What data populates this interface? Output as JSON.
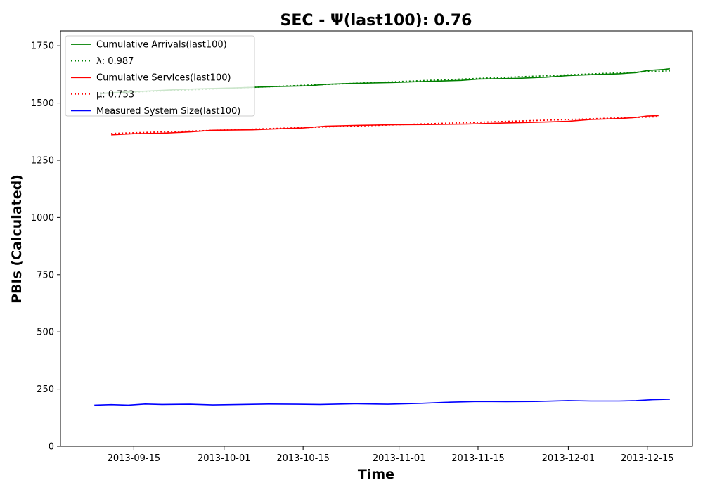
{
  "chart_data": {
    "type": "line",
    "title": "SEC -  Ψ(last100): 0.76",
    "xlabel": "Time",
    "ylabel": "PBIs (Calculated)",
    "x_range": [
      "2013-09-02",
      "2013-12-23"
    ],
    "ylim": [
      0,
      1815
    ],
    "x_ticks": [
      "2013-09-15",
      "2013-10-01",
      "2013-10-15",
      "2013-11-01",
      "2013-11-15",
      "2013-12-01",
      "2013-12-15"
    ],
    "y_ticks": [
      0,
      250,
      500,
      750,
      1000,
      1250,
      1500,
      1750
    ],
    "grid": false,
    "legend_position": "top-left",
    "colors": {
      "arrivals": "#008000",
      "services": "#ff0000",
      "system_size": "#0000ff"
    },
    "series": [
      {
        "key": "arrivals",
        "name": "Cumulative Arrivals(last100)",
        "style": "solid",
        "color": "#008000",
        "points": [
          [
            "2013-09-09",
            1541
          ],
          [
            "2013-09-12",
            1546
          ],
          [
            "2013-09-18",
            1553
          ],
          [
            "2013-09-24",
            1560
          ],
          [
            "2013-09-28",
            1563
          ],
          [
            "2013-10-03",
            1566
          ],
          [
            "2013-10-10",
            1572
          ],
          [
            "2013-10-16",
            1575
          ],
          [
            "2013-10-19",
            1582
          ],
          [
            "2013-10-24",
            1586
          ],
          [
            "2013-10-31",
            1590
          ],
          [
            "2013-11-05",
            1594
          ],
          [
            "2013-11-12",
            1599
          ],
          [
            "2013-11-15",
            1605
          ],
          [
            "2013-11-22",
            1608
          ],
          [
            "2013-11-27",
            1613
          ],
          [
            "2013-12-01",
            1620
          ],
          [
            "2013-12-05",
            1624
          ],
          [
            "2013-12-10",
            1628
          ],
          [
            "2013-12-13",
            1633
          ],
          [
            "2013-12-15",
            1642
          ],
          [
            "2013-12-18",
            1647
          ],
          [
            "2013-12-19",
            1650
          ]
        ]
      },
      {
        "key": "lambda",
        "name": "λ: 0.987",
        "style": "dotted",
        "color": "#008000",
        "points": [
          [
            "2013-09-09",
            1542
          ],
          [
            "2013-12-19",
            1641
          ]
        ]
      },
      {
        "key": "services",
        "name": "Cumulative Services(last100)",
        "style": "solid",
        "color": "#ff0000",
        "points": [
          [
            "2013-09-11",
            1361
          ],
          [
            "2013-09-15",
            1366
          ],
          [
            "2013-09-20",
            1368
          ],
          [
            "2013-09-25",
            1374
          ],
          [
            "2013-09-29",
            1381
          ],
          [
            "2013-10-06",
            1383
          ],
          [
            "2013-10-10",
            1387
          ],
          [
            "2013-10-15",
            1391
          ],
          [
            "2013-10-19",
            1399
          ],
          [
            "2013-10-24",
            1402
          ],
          [
            "2013-10-31",
            1405
          ],
          [
            "2013-11-06",
            1406
          ],
          [
            "2013-11-13",
            1408
          ],
          [
            "2013-11-20",
            1413
          ],
          [
            "2013-11-27",
            1417
          ],
          [
            "2013-12-01",
            1420
          ],
          [
            "2013-12-05",
            1428
          ],
          [
            "2013-12-10",
            1432
          ],
          [
            "2013-12-13",
            1437
          ],
          [
            "2013-12-15",
            1443
          ],
          [
            "2013-12-17",
            1445
          ]
        ]
      },
      {
        "key": "mu",
        "name": "μ: 0.753",
        "style": "dotted",
        "color": "#ff0000",
        "points": [
          [
            "2013-09-11",
            1367
          ],
          [
            "2013-12-17",
            1440
          ]
        ]
      },
      {
        "key": "system_size",
        "name": "Measured System Size(last100)",
        "style": "solid",
        "color": "#0000ff",
        "points": [
          [
            "2013-09-08",
            180
          ],
          [
            "2013-09-11",
            182
          ],
          [
            "2013-09-14",
            180
          ],
          [
            "2013-09-17",
            185
          ],
          [
            "2013-09-20",
            183
          ],
          [
            "2013-09-25",
            184
          ],
          [
            "2013-09-29",
            181
          ],
          [
            "2013-10-04",
            183
          ],
          [
            "2013-10-09",
            185
          ],
          [
            "2013-10-14",
            184
          ],
          [
            "2013-10-18",
            183
          ],
          [
            "2013-10-24",
            186
          ],
          [
            "2013-10-30",
            184
          ],
          [
            "2013-11-05",
            188
          ],
          [
            "2013-11-10",
            193
          ],
          [
            "2013-11-15",
            196
          ],
          [
            "2013-11-20",
            195
          ],
          [
            "2013-11-25",
            196
          ],
          [
            "2013-12-01",
            200
          ],
          [
            "2013-12-05",
            198
          ],
          [
            "2013-12-10",
            198
          ],
          [
            "2013-12-13",
            200
          ],
          [
            "2013-12-16",
            204
          ],
          [
            "2013-12-19",
            206
          ]
        ]
      }
    ]
  }
}
